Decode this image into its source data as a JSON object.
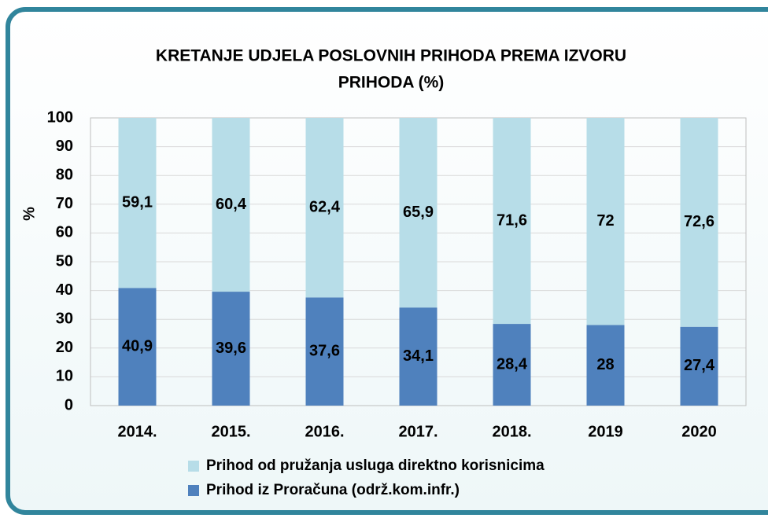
{
  "chart_data": {
    "type": "stacked_bar",
    "title": [
      "KRETANJE UDJELA POSLOVNIH PRIHODA PREMA IZVORU",
      "PRIHODA (%)"
    ],
    "y_label": "%",
    "categories": [
      "2014.",
      "2015.",
      "2016.",
      "2017.",
      "2018.",
      "2019",
      "2020"
    ],
    "series": [
      {
        "name": "Prihod iz Proračuna (održ.kom.infr.)",
        "color": "#4f81bd",
        "values": [
          40.9,
          39.6,
          37.6,
          34.1,
          28.4,
          28,
          27.4
        ],
        "value_labels": [
          "40,9",
          "39,6",
          "37,6",
          "34,1",
          "28,4",
          "28",
          "27,4"
        ]
      },
      {
        "name": "Prihod od pružanja usluga direktno korisnicima",
        "color": "#b7dde8",
        "values": [
          59.1,
          60.4,
          62.4,
          65.9,
          71.6,
          72,
          72.6
        ],
        "value_labels": [
          "59,1",
          "60,4",
          "62,4",
          "65,9",
          "71,6",
          "72",
          "72,6"
        ]
      }
    ],
    "ylim": [
      0,
      100
    ],
    "yticks": [
      0,
      10,
      20,
      30,
      40,
      50,
      60,
      70,
      80,
      90,
      100
    ],
    "grid": true
  }
}
